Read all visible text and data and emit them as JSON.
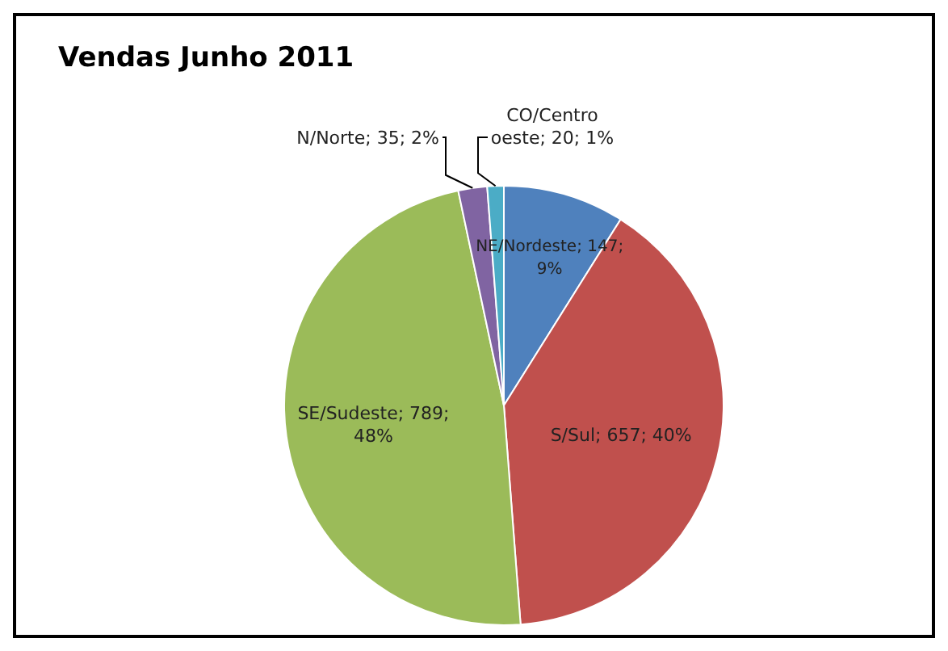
{
  "chart_data": {
    "type": "pie",
    "title": "Vendas Junho 2011",
    "categories": [
      "NE/Nordeste",
      "S/Sul",
      "SE/Sudeste",
      "N/Norte",
      "CO/Centro oeste"
    ],
    "values": [
      147,
      657,
      789,
      35,
      20
    ],
    "colors": [
      "#4f81bd",
      "#c0504d",
      "#9bbb59",
      "#8064a2",
      "#4bacc6"
    ],
    "value_labels": [
      "147; 9%",
      "657; 40%",
      "789; 48%",
      "35; 2%",
      "20; 1%"
    ],
    "legend": false
  }
}
